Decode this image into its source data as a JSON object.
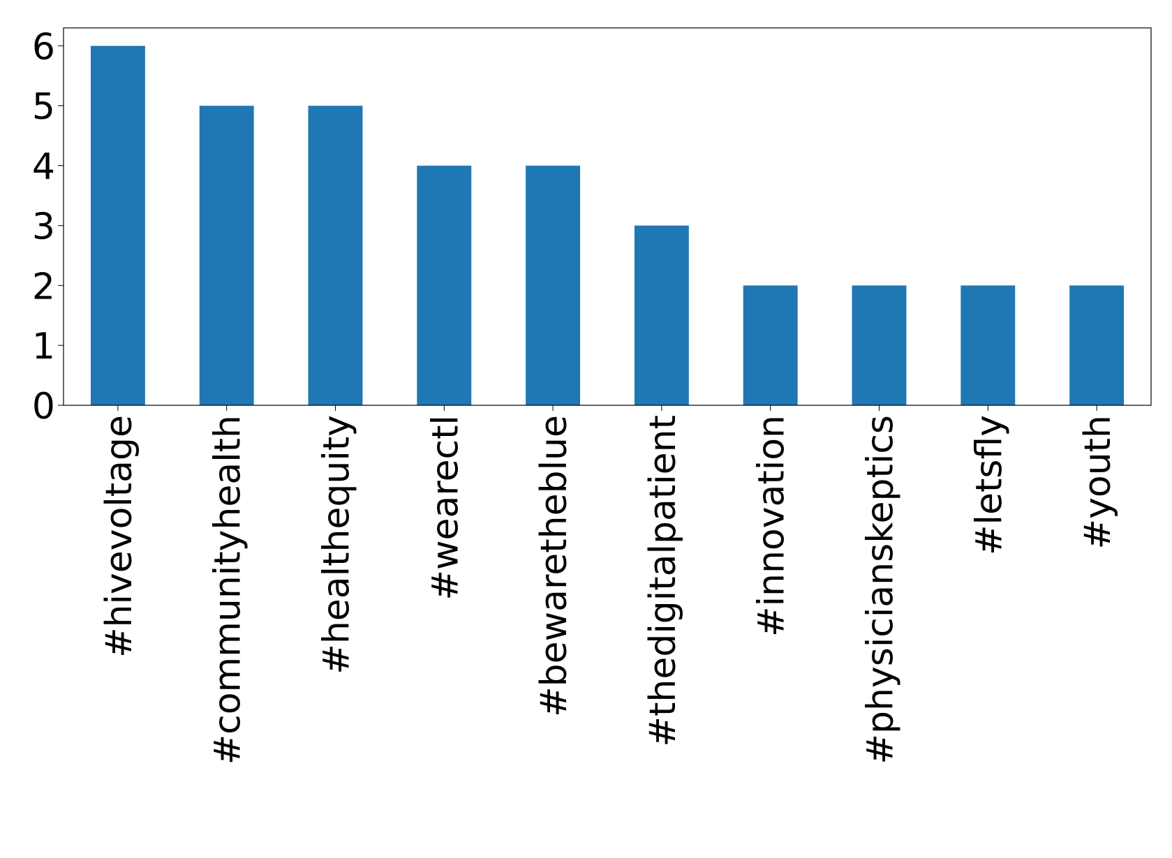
{
  "chart_data": {
    "type": "bar",
    "categories": [
      "#hivevoltage",
      "#communityhealth",
      "#healthequity",
      "#wearectl",
      "#bewaretheblue",
      "#thedigitalpatient",
      "#innovation",
      "#physicianskeptics",
      "#letsfly",
      "#youth"
    ],
    "values": [
      6,
      5,
      5,
      4,
      4,
      3,
      2,
      2,
      2,
      2
    ],
    "color": "#1f77b4",
    "ylim": [
      0,
      6.3
    ],
    "yticks": [
      0,
      1,
      2,
      3,
      4,
      5,
      6
    ],
    "grid": false
  }
}
